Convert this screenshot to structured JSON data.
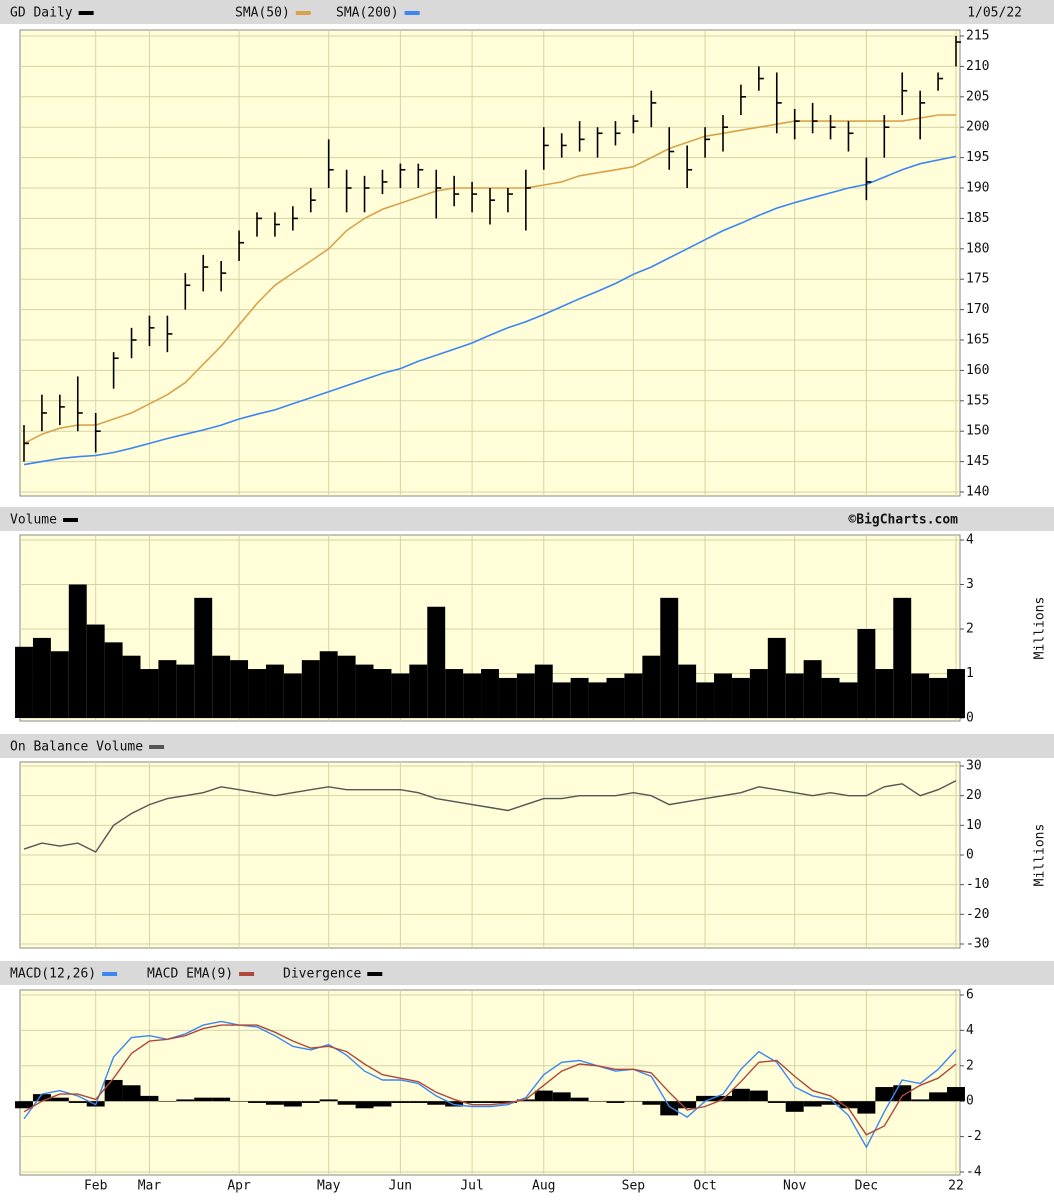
{
  "chart_data": [
    {
      "type": "ohlc",
      "date": "1/05/22",
      "grid": true,
      "ohlc": {
        "name": "GD Daily",
        "color": "#000000",
        "high": [
          151,
          156,
          156,
          159,
          153,
          163,
          167,
          169,
          169,
          176,
          179,
          178,
          183,
          186,
          186,
          187,
          190,
          198,
          193,
          192,
          193,
          194,
          194,
          193,
          192,
          191,
          190,
          190,
          193,
          200,
          199,
          201,
          200,
          201,
          202,
          206,
          200,
          197,
          200,
          202,
          207,
          210,
          209,
          203,
          204,
          202,
          201,
          195,
          202,
          209,
          206,
          209,
          215
        ],
        "low": [
          145,
          150,
          151,
          150,
          146.5,
          157,
          162,
          164,
          163,
          170,
          173,
          173,
          178,
          182,
          182,
          183,
          186,
          190,
          186,
          186,
          189,
          190,
          190,
          185,
          187,
          186,
          184,
          186,
          183,
          193,
          195,
          196,
          195,
          197,
          199,
          200,
          193,
          190,
          195,
          196,
          202,
          206,
          199,
          198,
          199,
          198,
          196,
          188,
          195,
          202,
          198,
          206,
          210
        ],
        "close": [
          148,
          153,
          154,
          153,
          150,
          162,
          165,
          167,
          166,
          174,
          177,
          176,
          181,
          185,
          184,
          185,
          188,
          193,
          190,
          190,
          191,
          193,
          193,
          190,
          189,
          189,
          188,
          189,
          190,
          197,
          197,
          198,
          199,
          199,
          201,
          204,
          196,
          193,
          198,
          200,
          205,
          208,
          204,
          201,
          201,
          200,
          199,
          191,
          200,
          206,
          204,
          208,
          214
        ]
      },
      "series": [
        {
          "name": "SMA(50)",
          "color": "#d9a24a",
          "values": [
            148,
            149.5,
            150.5,
            151,
            151,
            152,
            153,
            154.5,
            156,
            158,
            161,
            164,
            167.5,
            171,
            174,
            176,
            178,
            180,
            183,
            185,
            186.5,
            187.5,
            188.5,
            189.5,
            190,
            190,
            190,
            190,
            190,
            190.5,
            191,
            192,
            192.5,
            193,
            193.5,
            195,
            196.5,
            197.5,
            198.5,
            199,
            199.5,
            200,
            200.5,
            201,
            201,
            201,
            201,
            201,
            201,
            201,
            201.5,
            202,
            202
          ]
        },
        {
          "name": "SMA(200)",
          "color": "#3b86f0",
          "values": [
            144.5,
            145,
            145.5,
            145.8,
            146,
            146.5,
            147.2,
            148,
            148.8,
            149.5,
            150.2,
            151,
            152,
            152.8,
            153.5,
            154.5,
            155.5,
            156.5,
            157.5,
            158.5,
            159.5,
            160.3,
            161.5,
            162.5,
            163.5,
            164.5,
            165.8,
            167,
            168,
            169.2,
            170.5,
            171.8,
            173,
            174.3,
            175.8,
            177,
            178.5,
            180,
            181.5,
            183,
            184.2,
            185.5,
            186.7,
            187.6,
            188.4,
            189.2,
            190,
            190.6,
            191.8,
            193,
            194,
            194.6,
            195.2
          ]
        }
      ],
      "ylim": [
        140,
        215
      ],
      "yticks": [
        140,
        145,
        150,
        155,
        160,
        165,
        170,
        175,
        180,
        185,
        190,
        195,
        200,
        205,
        210,
        215
      ]
    },
    {
      "type": "bar",
      "title": "Volume",
      "credit": "©BigCharts.com",
      "ylabel": "Millions",
      "color": "#000000",
      "grid": true,
      "values": [
        1.6,
        1.8,
        1.5,
        3.0,
        2.1,
        1.7,
        1.4,
        1.1,
        1.3,
        1.2,
        2.7,
        1.4,
        1.3,
        1.1,
        1.2,
        1.0,
        1.3,
        1.5,
        1.4,
        1.2,
        1.1,
        1.0,
        1.2,
        2.5,
        1.1,
        1.0,
        1.1,
        0.9,
        1.0,
        1.2,
        0.8,
        0.9,
        0.8,
        0.9,
        1.0,
        1.4,
        2.7,
        1.2,
        0.8,
        1.0,
        0.9,
        1.1,
        1.8,
        1.0,
        1.3,
        0.9,
        0.8,
        2.0,
        1.1,
        2.7,
        1.0,
        0.9,
        1.1
      ],
      "ylim": [
        0,
        4
      ],
      "yticks": [
        0,
        1,
        2,
        3,
        4
      ]
    },
    {
      "type": "line",
      "title": "On Balance Volume",
      "ylabel": "Millions",
      "color": "#555555",
      "grid": true,
      "values": [
        2,
        4,
        3,
        4,
        1,
        10,
        14,
        17,
        19,
        20,
        21,
        23,
        22,
        21,
        20,
        21,
        22,
        23,
        22,
        22,
        22,
        22,
        21,
        19,
        18,
        17,
        16,
        15,
        17,
        19,
        19,
        20,
        20,
        20,
        21,
        20,
        17,
        18,
        19,
        20,
        21,
        23,
        22,
        21,
        20,
        21,
        20,
        20,
        23,
        24,
        20,
        22,
        25
      ],
      "ylim": [
        -30,
        30
      ],
      "yticks": [
        -30,
        -20,
        -10,
        0,
        10,
        20,
        30
      ]
    },
    {
      "type": "macd",
      "grid": true,
      "categories": [
        null,
        null,
        null,
        null,
        "Feb",
        null,
        null,
        "Mar",
        null,
        null,
        null,
        null,
        "Apr",
        null,
        null,
        null,
        null,
        "May",
        null,
        null,
        null,
        "Jun",
        null,
        null,
        null,
        "Jul",
        null,
        null,
        null,
        "Aug",
        null,
        null,
        null,
        null,
        "Sep",
        null,
        null,
        null,
        "Oct",
        null,
        null,
        null,
        null,
        "Nov",
        null,
        null,
        null,
        "Dec",
        null,
        null,
        null,
        null,
        "22"
      ],
      "series": [
        {
          "name": "MACD(12,26)",
          "color": "#3b86f0",
          "values": [
            -1.0,
            0.4,
            0.6,
            0.3,
            -0.2,
            2.5,
            3.6,
            3.7,
            3.5,
            3.8,
            4.3,
            4.5,
            4.3,
            4.2,
            3.7,
            3.1,
            2.9,
            3.2,
            2.6,
            1.7,
            1.2,
            1.2,
            1.0,
            0.3,
            -0.2,
            -0.3,
            -0.3,
            -0.2,
            0.2,
            1.5,
            2.2,
            2.3,
            2.0,
            1.7,
            1.8,
            1.4,
            -0.3,
            -0.9,
            0.0,
            0.4,
            1.8,
            2.8,
            2.2,
            0.8,
            0.3,
            0.1,
            -0.8,
            -2.6,
            -0.6,
            1.2,
            1.0,
            1.8,
            2.9
          ]
        },
        {
          "name": "MACD EMA(9)",
          "color": "#b0483a",
          "values": [
            -0.6,
            0.0,
            0.4,
            0.4,
            0.1,
            1.3,
            2.7,
            3.4,
            3.5,
            3.7,
            4.1,
            4.3,
            4.3,
            4.3,
            3.9,
            3.4,
            3.0,
            3.1,
            2.8,
            2.1,
            1.5,
            1.3,
            1.1,
            0.5,
            0.1,
            -0.2,
            -0.2,
            -0.1,
            0.1,
            0.9,
            1.7,
            2.1,
            2.0,
            1.8,
            1.8,
            1.6,
            0.5,
            -0.5,
            -0.3,
            0.1,
            1.1,
            2.2,
            2.3,
            1.4,
            0.6,
            0.3,
            -0.4,
            -1.9,
            -1.4,
            0.3,
            0.9,
            1.3,
            2.1
          ]
        },
        {
          "name": "Divergence",
          "color": "#000000",
          "type": "bar",
          "values": [
            -0.4,
            0.4,
            0.2,
            -0.1,
            -0.3,
            1.2,
            0.9,
            0.3,
            0,
            0.1,
            0.2,
            0.2,
            0,
            -0.1,
            -0.2,
            -0.3,
            -0.1,
            0.1,
            -0.2,
            -0.4,
            -0.3,
            -0.1,
            -0.1,
            -0.2,
            -0.3,
            -0.1,
            -0.1,
            -0.1,
            0.1,
            0.6,
            0.5,
            0.2,
            0,
            -0.1,
            0,
            -0.2,
            -0.8,
            -0.4,
            0.3,
            0.3,
            0.7,
            0.6,
            -0.1,
            -0.6,
            -0.3,
            -0.2,
            -0.4,
            -0.7,
            0.8,
            0.9,
            0.1,
            0.5,
            0.8
          ]
        }
      ],
      "ylim": [
        -4,
        6
      ],
      "yticks": [
        -4,
        -2,
        0,
        2,
        4,
        6
      ]
    }
  ]
}
